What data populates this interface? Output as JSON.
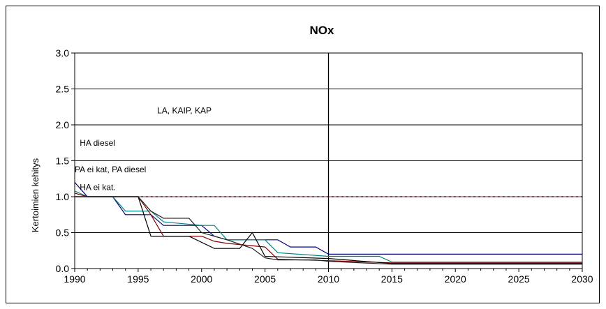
{
  "chart_data": {
    "type": "line",
    "title": "NOx",
    "ylabel": "Kertoimien kehitys",
    "xlabel": "",
    "xlim": [
      1990,
      2030
    ],
    "ylim": [
      0.0,
      3.0
    ],
    "x_ticks": [
      "1990",
      "1995",
      "2000",
      "2005",
      "2010",
      "2015",
      "2020",
      "2025",
      "2030"
    ],
    "y_ticks": [
      "0.0",
      "0.5",
      "1.0",
      "1.5",
      "2.0",
      "2.5",
      "3.0"
    ],
    "grid": "horizontal",
    "legend": "none",
    "reference_lines": [
      {
        "kind": "horizontal",
        "value": 1.0,
        "color": "#000000",
        "style": "solid"
      },
      {
        "kind": "horizontal",
        "value": 1.0,
        "color": "#cc6699",
        "style": "dashed"
      },
      {
        "kind": "vertical",
        "value": 2010,
        "color": "#000000",
        "style": "solid"
      }
    ],
    "annotations": [
      {
        "text": "LA, KAIP, KAP",
        "x": 1996.5,
        "y": 2.2
      },
      {
        "text": "HA diesel",
        "x": 1990.4,
        "y": 1.75
      },
      {
        "text": "PA ei kat, PA diesel",
        "x": 1990.0,
        "y": 1.38
      },
      {
        "text": "HA ei kat.",
        "x": 1990.4,
        "y": 1.13
      }
    ],
    "series": [
      {
        "color": "#000080",
        "x": [
          1990,
          1991,
          1993,
          1994,
          1996,
          1997,
          2000,
          2001,
          2002,
          2006,
          2007,
          2009,
          2010,
          2014,
          2015,
          2030
        ],
        "y": [
          1.2,
          1.0,
          1.0,
          0.75,
          0.75,
          0.6,
          0.6,
          0.45,
          0.4,
          0.4,
          0.3,
          0.3,
          0.2,
          0.2,
          0.2,
          0.2
        ]
      },
      {
        "color": "#008080",
        "x": [
          1990,
          1991,
          1993,
          1994,
          1996,
          1997,
          2000,
          2001,
          2002,
          2005,
          2006,
          2010,
          2014,
          2015,
          2030
        ],
        "y": [
          1.08,
          1.0,
          1.0,
          0.8,
          0.8,
          0.65,
          0.6,
          0.6,
          0.4,
          0.4,
          0.22,
          0.17,
          0.17,
          0.09,
          0.09
        ]
      },
      {
        "color": "#800000",
        "x": [
          1990,
          1991,
          1995,
          1996,
          1997,
          2000,
          2001,
          2002,
          2005,
          2006,
          2010,
          2015,
          2030
        ],
        "y": [
          1.05,
          1.0,
          1.0,
          0.75,
          0.45,
          0.45,
          0.38,
          0.35,
          0.3,
          0.13,
          0.11,
          0.08,
          0.08
        ]
      },
      {
        "color": "#000000",
        "x": [
          1990,
          1991,
          1995,
          1996,
          1998,
          1999,
          2001,
          2003,
          2004,
          2005,
          2010,
          2015,
          2030
        ],
        "y": [
          1.0,
          1.0,
          1.0,
          0.45,
          0.45,
          0.45,
          0.28,
          0.28,
          0.5,
          0.17,
          0.14,
          0.07,
          0.07
        ]
      },
      {
        "color": "#222222",
        "x": [
          1990,
          1995,
          1996,
          1997,
          1999,
          2000,
          2002,
          2004,
          2005,
          2006,
          2009,
          2010,
          2015,
          2030
        ],
        "y": [
          1.0,
          1.0,
          0.8,
          0.7,
          0.7,
          0.5,
          0.4,
          0.28,
          0.15,
          0.12,
          0.12,
          0.1,
          0.06,
          0.06
        ]
      }
    ]
  }
}
